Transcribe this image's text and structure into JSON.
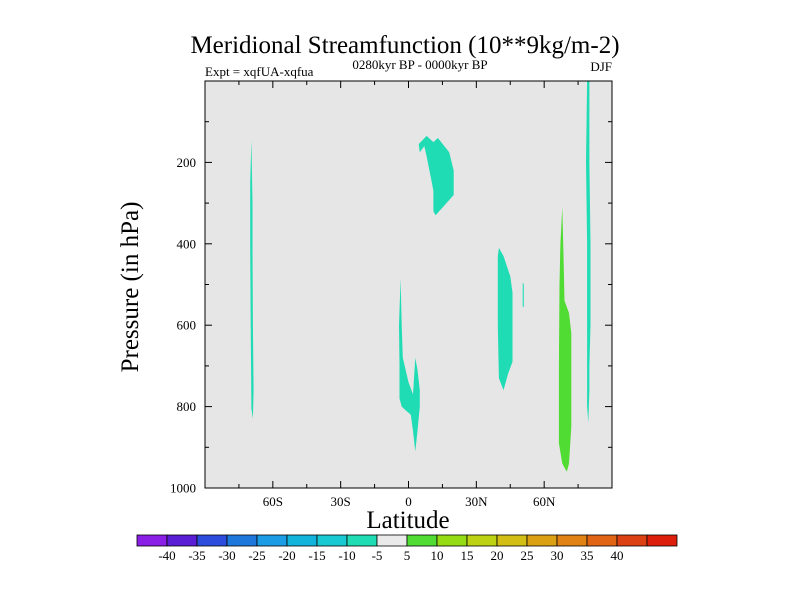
{
  "chart_data": {
    "type": "contour",
    "title": "Meridional Streamfunction (10**9kg/m-2)",
    "subtitle_left": "Expt = xqfUA-xqfua",
    "subtitle_center": "0280kyr BP - 0000kyr BP",
    "subtitle_right": "DJF",
    "xlabel": "Latitude",
    "ylabel": "Pressure (in hPa)",
    "xlim": [
      -90,
      90
    ],
    "ylim": [
      1000,
      0
    ],
    "x_ticks": [
      {
        "value": -60,
        "label": "60S"
      },
      {
        "value": -30,
        "label": "30S"
      },
      {
        "value": 0,
        "label": "0"
      },
      {
        "value": 30,
        "label": "30N"
      },
      {
        "value": 60,
        "label": "60N"
      }
    ],
    "y_ticks": [
      {
        "value": 200,
        "label": "200"
      },
      {
        "value": 400,
        "label": "400"
      },
      {
        "value": 600,
        "label": "600"
      },
      {
        "value": 800,
        "label": "800"
      },
      {
        "value": 1000,
        "label": "1000"
      }
    ],
    "background_color": "#e6e6e6",
    "regions": [
      {
        "name": "neg-band-70S",
        "level": "-10 to -5",
        "color": "#1fdcb4",
        "points": [
          [
            -69.5,
            145
          ],
          [
            -69,
            300
          ],
          [
            -69,
            420
          ],
          [
            -68.8,
            600
          ],
          [
            -68.5,
            760
          ],
          [
            -68.8,
            830
          ],
          [
            -69.5,
            805
          ],
          [
            -69.8,
            600
          ],
          [
            -70,
            400
          ],
          [
            -70,
            250
          ]
        ]
      },
      {
        "name": "neg-cell-10N",
        "level": "-10 to -5",
        "color": "#1fdcb4",
        "points": [
          [
            4.5,
            155
          ],
          [
            8,
            135
          ],
          [
            11,
            150
          ],
          [
            13,
            140
          ],
          [
            18,
            175
          ],
          [
            20,
            220
          ],
          [
            20,
            280
          ],
          [
            16,
            305
          ],
          [
            12,
            330
          ],
          [
            11,
            320
          ],
          [
            11,
            270
          ],
          [
            10,
            240
          ],
          [
            8,
            185
          ],
          [
            7,
            160
          ],
          [
            5,
            175
          ]
        ]
      },
      {
        "name": "neg-cell-equator",
        "level": "-10 to -5",
        "color": "#1fdcb4",
        "points": [
          [
            -3.5,
            485
          ],
          [
            -3,
            600
          ],
          [
            -2.5,
            680
          ],
          [
            0,
            740
          ],
          [
            2,
            770
          ],
          [
            3,
            680
          ],
          [
            4,
            710
          ],
          [
            5,
            760
          ],
          [
            5,
            800
          ],
          [
            4,
            860
          ],
          [
            3,
            910
          ],
          [
            2,
            860
          ],
          [
            1,
            820
          ],
          [
            -1,
            810
          ],
          [
            -3,
            800
          ],
          [
            -4,
            780
          ],
          [
            -4,
            700
          ],
          [
            -4.2,
            600
          ]
        ]
      },
      {
        "name": "neg-cell-40N",
        "level": "-10 to -5",
        "color": "#1fdcb4",
        "points": [
          [
            40,
            410
          ],
          [
            42,
            430
          ],
          [
            45,
            480
          ],
          [
            46,
            520
          ],
          [
            46,
            600
          ],
          [
            46,
            690
          ],
          [
            44,
            720
          ],
          [
            42,
            760
          ],
          [
            40,
            730
          ],
          [
            39.5,
            600
          ],
          [
            39.5,
            500
          ],
          [
            39.5,
            430
          ]
        ]
      },
      {
        "name": "neg-sliver-50N",
        "level": "-10 to -5",
        "color": "#1fdcb4",
        "points": [
          [
            50.5,
            495
          ],
          [
            51,
            500
          ],
          [
            51,
            555
          ],
          [
            50.5,
            555
          ]
        ]
      },
      {
        "name": "neg-band-80N",
        "level": "-10 to -5",
        "color": "#1fdcb4",
        "points": [
          [
            79,
            0
          ],
          [
            80,
            0
          ],
          [
            80,
            200
          ],
          [
            80.5,
            400
          ],
          [
            80.5,
            600
          ],
          [
            80,
            700
          ],
          [
            80,
            760
          ],
          [
            79.5,
            840
          ],
          [
            79,
            800
          ],
          [
            79,
            600
          ],
          [
            79,
            400
          ],
          [
            78.5,
            200
          ]
        ]
      },
      {
        "name": "pos-cell-70N",
        "level": "5 to 10",
        "color": "#50dc32",
        "points": [
          [
            68,
            310
          ],
          [
            68.5,
            420
          ],
          [
            69,
            540
          ],
          [
            71,
            570
          ],
          [
            72,
            620
          ],
          [
            72,
            700
          ],
          [
            72,
            850
          ],
          [
            71,
            940
          ],
          [
            70,
            960
          ],
          [
            68,
            940
          ],
          [
            66.5,
            890
          ],
          [
            66.5,
            700
          ],
          [
            66.8,
            500
          ],
          [
            67.2,
            400
          ]
        ]
      }
    ],
    "colorbar": {
      "colors": [
        "#8a1fe6",
        "#5a1ed4",
        "#2b4cdc",
        "#1e78dc",
        "#1b9ce4",
        "#12b4dc",
        "#18c8d2",
        "#1fdcb4",
        "#eaeaea",
        "#50dc32",
        "#96dc14",
        "#bed214",
        "#d2be14",
        "#dca014",
        "#e08214",
        "#e06414",
        "#dc4114",
        "#dc1e0a"
      ],
      "labels": [
        "-40",
        "-35",
        "-30",
        "-25",
        "-20",
        "-15",
        "-10",
        "-5",
        "5",
        "10",
        "15",
        "20",
        "25",
        "30",
        "35",
        "40"
      ]
    }
  }
}
